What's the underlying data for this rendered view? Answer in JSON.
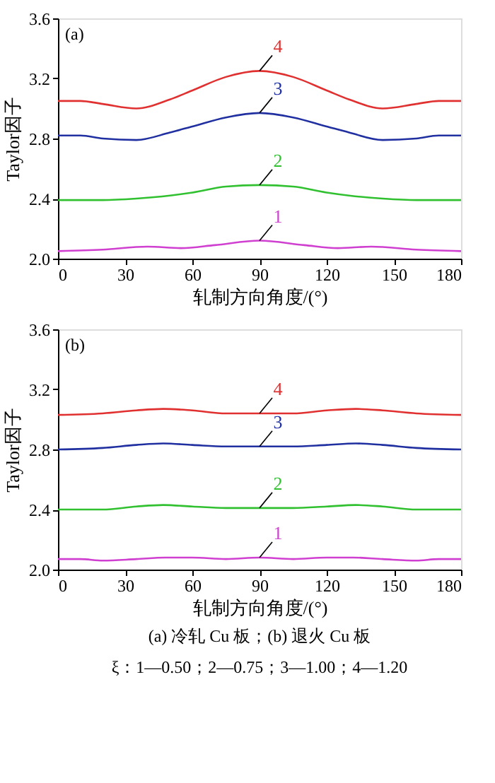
{
  "chart_data": [
    {
      "type": "line",
      "xlabel": "轧制方向角度/(°)",
      "ylabel": "Taylor因子",
      "annotations": [
        "(a)"
      ],
      "xlim": [
        0,
        180
      ],
      "xticks": [
        0,
        30,
        60,
        90,
        120,
        150,
        180
      ],
      "ylim": [
        2.0,
        3.6
      ],
      "yticks": [
        {
          "value": 2.0,
          "label": "2.0"
        },
        {
          "value": 2.4,
          "label": "2.4"
        },
        {
          "value": 2.8,
          "label": "2.8"
        },
        {
          "value": 3.2,
          "label": "3.2"
        },
        {
          "value": 3.6,
          "label": "3.6"
        }
      ],
      "grid": false,
      "marker": "none",
      "line_style": "solid",
      "series": [
        {
          "name": "1",
          "color": "#d040d0",
          "x": [
            0,
            20,
            40,
            55,
            70,
            90,
            110,
            125,
            140,
            160,
            180
          ],
          "values": [
            2.05,
            2.06,
            2.08,
            2.07,
            2.09,
            2.12,
            2.09,
            2.07,
            2.08,
            2.06,
            2.05
          ]
        },
        {
          "name": "2",
          "color": "#30c030",
          "x": [
            0,
            20,
            35,
            50,
            60,
            75,
            90,
            105,
            120,
            130,
            145,
            160,
            180
          ],
          "values": [
            2.39,
            2.39,
            2.4,
            2.42,
            2.44,
            2.48,
            2.49,
            2.48,
            2.44,
            2.42,
            2.4,
            2.39,
            2.39
          ]
        },
        {
          "name": "3",
          "color": "#2030a0",
          "x": [
            0,
            10,
            20,
            35,
            50,
            60,
            75,
            90,
            105,
            120,
            130,
            145,
            160,
            170,
            180
          ],
          "values": [
            2.82,
            2.82,
            2.8,
            2.79,
            2.84,
            2.88,
            2.94,
            2.97,
            2.94,
            2.88,
            2.84,
            2.79,
            2.8,
            2.82,
            2.82
          ]
        },
        {
          "name": "4",
          "color": "#e03030",
          "x": [
            0,
            10,
            20,
            35,
            50,
            60,
            75,
            90,
            105,
            120,
            130,
            145,
            160,
            170,
            180
          ],
          "values": [
            3.05,
            3.05,
            3.03,
            3.0,
            3.06,
            3.12,
            3.21,
            3.25,
            3.21,
            3.12,
            3.06,
            3.0,
            3.03,
            3.05,
            3.05
          ]
        }
      ]
    },
    {
      "type": "line",
      "xlabel": "轧制方向角度/(°)",
      "ylabel": "Taylor因子",
      "annotations": [
        "(b)",
        "(a) 冷轧 Cu 板；(b) 退火 Cu 板",
        "ξ：1—0.50；2—0.75；3—1.00；4—1.20"
      ],
      "xlim": [
        0,
        180
      ],
      "xticks": [
        0,
        30,
        60,
        90,
        120,
        150,
        180
      ],
      "ylim": [
        2.0,
        3.6
      ],
      "yticks": [
        {
          "value": 2.0,
          "label": "2.0"
        },
        {
          "value": 2.4,
          "label": "2.4"
        },
        {
          "value": 2.8,
          "label": "2.8"
        },
        {
          "value": 3.2,
          "label": "3.2"
        },
        {
          "value": 3.6,
          "label": "3.6"
        }
      ],
      "grid": false,
      "marker": "none",
      "line_style": "solid",
      "series": [
        {
          "name": "1",
          "color": "#d040d0",
          "x": [
            0,
            10,
            20,
            35,
            48,
            60,
            75,
            90,
            105,
            120,
            132,
            145,
            160,
            170,
            180
          ],
          "values": [
            2.07,
            2.07,
            2.06,
            2.07,
            2.08,
            2.08,
            2.07,
            2.08,
            2.07,
            2.08,
            2.08,
            2.07,
            2.06,
            2.07,
            2.07
          ]
        },
        {
          "name": "2",
          "color": "#30c030",
          "x": [
            0,
            20,
            35,
            47,
            60,
            75,
            90,
            105,
            120,
            133,
            145,
            160,
            180
          ],
          "values": [
            2.4,
            2.4,
            2.42,
            2.43,
            2.42,
            2.41,
            2.41,
            2.41,
            2.42,
            2.43,
            2.42,
            2.4,
            2.4
          ]
        },
        {
          "name": "3",
          "color": "#2030a0",
          "x": [
            0,
            20,
            35,
            47,
            60,
            75,
            90,
            105,
            120,
            133,
            145,
            160,
            180
          ],
          "values": [
            2.8,
            2.81,
            2.83,
            2.84,
            2.83,
            2.82,
            2.82,
            2.82,
            2.83,
            2.84,
            2.83,
            2.81,
            2.8
          ]
        },
        {
          "name": "4",
          "color": "#e03030",
          "x": [
            0,
            20,
            35,
            47,
            60,
            75,
            90,
            105,
            120,
            133,
            145,
            160,
            180
          ],
          "values": [
            3.03,
            3.04,
            3.06,
            3.07,
            3.06,
            3.04,
            3.04,
            3.04,
            3.06,
            3.07,
            3.06,
            3.04,
            3.03
          ]
        }
      ]
    }
  ]
}
